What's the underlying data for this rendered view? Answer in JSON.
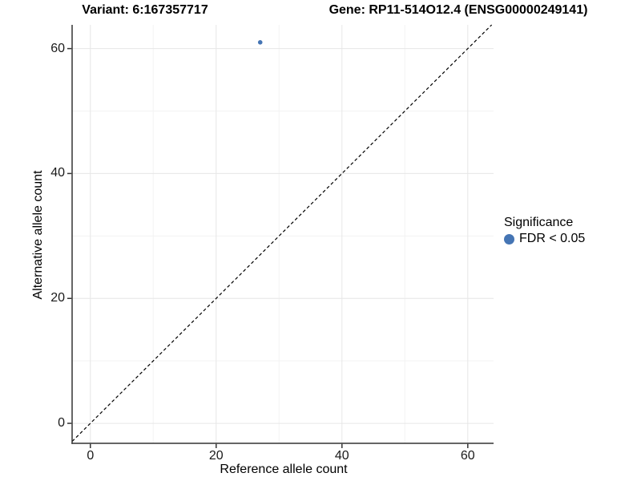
{
  "chart_data": {
    "type": "scatter",
    "titles": {
      "left": "Variant: 6:167357717",
      "right": "Gene: RP11-514O12.4 (ENSG00000249141)"
    },
    "xlabel": "Reference allele count",
    "ylabel": "Alternative allele count",
    "xlim": [
      -2.9,
      64.1
    ],
    "ylim": [
      -3.2,
      63.8
    ],
    "x_major_ticks": [
      0,
      20,
      40,
      60
    ],
    "y_major_ticks": [
      0,
      20,
      40,
      60
    ],
    "x_minor_gridlines": [
      10,
      30,
      50
    ],
    "y_minor_gridlines": [
      10,
      30,
      50
    ],
    "grid": "major+minor",
    "series": [
      {
        "name": "FDR < 0.05",
        "color": "#4575B4",
        "points": [
          {
            "x": 27,
            "y": 61
          }
        ]
      }
    ],
    "reference_line": {
      "type": "identity",
      "slope": 1,
      "intercept": 0,
      "style": "dashed",
      "color": "#000000"
    },
    "legend": {
      "title": "Significance",
      "position": "right",
      "entries": [
        {
          "label": "FDR < 0.05",
          "color": "#4575B4",
          "marker": "circle"
        }
      ]
    },
    "colors": {
      "background": "#FFFFFF",
      "grid_major": "#E6E6E6",
      "grid_minor": "#F3F3F3",
      "axis_line": "#333333",
      "tick_mark": "#333333",
      "tick_text": "#1A1A1A"
    }
  }
}
